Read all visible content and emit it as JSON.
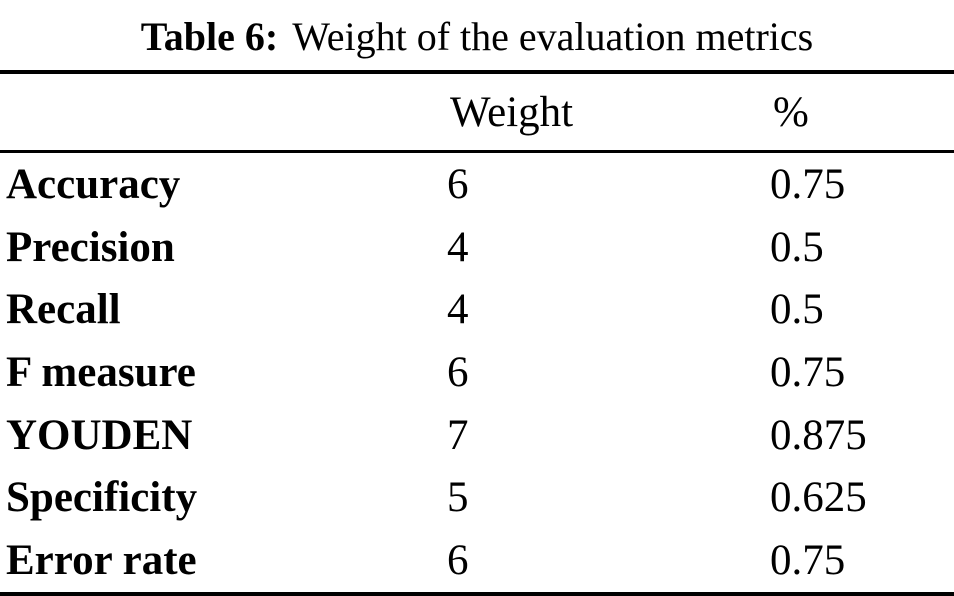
{
  "page": {
    "background_color": "#ffffff",
    "text_color": "#000000"
  },
  "caption": {
    "label": "Table 6:",
    "text": "Weight of the evaluation metrics"
  },
  "table": {
    "columns": [
      "",
      "Weight",
      "%"
    ],
    "rows": [
      {
        "metric": "Accuracy",
        "weight": "6",
        "percent": "0.75"
      },
      {
        "metric": "Precision",
        "weight": "4",
        "percent": "0.5"
      },
      {
        "metric": "Recall",
        "weight": "4",
        "percent": "0.5"
      },
      {
        "metric": "F measure",
        "weight": "6",
        "percent": "0.75"
      },
      {
        "metric": "YOUDEN",
        "weight": "7",
        "percent": "0.875"
      },
      {
        "metric": "Specificity",
        "weight": "5",
        "percent": "0.625"
      },
      {
        "metric": "Error rate",
        "weight": "6",
        "percent": "0.75"
      }
    ]
  }
}
